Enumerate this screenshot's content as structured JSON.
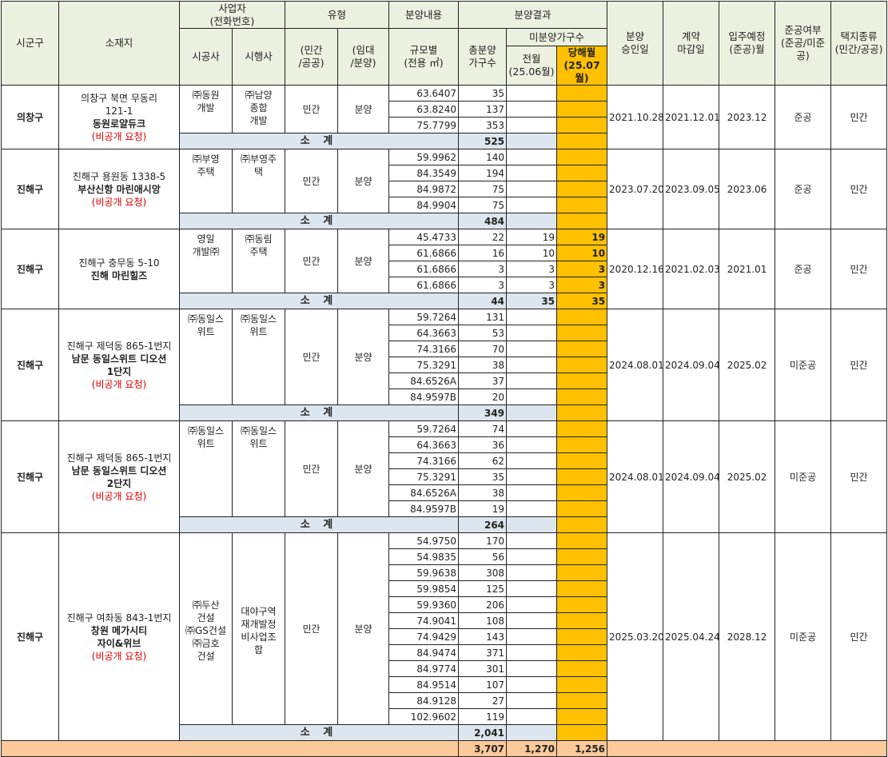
{
  "header": {
    "sigungu": "시군구",
    "location": "소재지",
    "business": "사업자\n(전화번호)",
    "type": "유형",
    "sale_content": "분양내용",
    "sale_result": "분양결과",
    "approval_date": "분양\n승인일",
    "contract_deadline": "계약\n마감일",
    "move_in": "입주예정\n(준공)월",
    "completion": "준공여부\n(준공/미준공)",
    "land_type": "택지종류\n(민간/공공)",
    "builder": "시공사",
    "developer": "시행사",
    "private_public": "(민간\n/공공)",
    "rent_sale": "(임대\n/분양)",
    "area": "규모별\n(전용 ㎡)",
    "total_units": "총분양\n가구수",
    "unsold": "미분양가구수",
    "prev_month": "전월\n(25.06월)",
    "curr_month": "당해월\n(25.07월)"
  },
  "subtotal_label": "소  계",
  "projects": [
    {
      "sigungu": "의창구",
      "addr": [
        "의창구 북면 무동리",
        "121-1"
      ],
      "name": "동원로얄듀크",
      "note": "(비공개 요청)",
      "builder": "㈜동원\n개발",
      "developer": "㈜남양\n종합\n개발",
      "pp": "민간",
      "rs": "분양",
      "rows": [
        {
          "area": "63.6407",
          "units": "35",
          "prev": "",
          "curr": ""
        },
        {
          "area": "63.8240",
          "units": "137",
          "prev": "",
          "curr": ""
        },
        {
          "area": "75.7799",
          "units": "353",
          "prev": "",
          "curr": ""
        }
      ],
      "subtotal": {
        "units": "525",
        "prev": "",
        "curr": ""
      },
      "approval": "2021.10.28",
      "deadline": "2021.12.01",
      "move_in": "2023.12",
      "completion": "준공",
      "land": "민간"
    },
    {
      "sigungu": "진해구",
      "addr": [
        "진해구 용원동 1338-5"
      ],
      "name": "부산신항 마린애시앙",
      "note": "(비공개 요청)",
      "builder": "㈜부영\n주택",
      "developer": "㈜부영주\n택",
      "pp": "민간",
      "rs": "분양",
      "rows": [
        {
          "area": "59.9962",
          "units": "140",
          "prev": "",
          "curr": ""
        },
        {
          "area": "84.3549",
          "units": "194",
          "prev": "",
          "curr": ""
        },
        {
          "area": "84.9872",
          "units": "75",
          "prev": "",
          "curr": ""
        },
        {
          "area": "84.9904",
          "units": "75",
          "prev": "",
          "curr": ""
        }
      ],
      "subtotal": {
        "units": "484",
        "prev": "",
        "curr": ""
      },
      "approval": "2023.07.20",
      "deadline": "2023.09.05",
      "move_in": "2023.06",
      "completion": "준공",
      "land": "민간"
    },
    {
      "sigungu": "진해구",
      "addr": [
        "진해구 충무동 5-10"
      ],
      "name": "진해 마린힐즈",
      "note": "",
      "builder": "영일\n개발㈜",
      "developer": "㈜동림\n주택",
      "pp": "민간",
      "rs": "분양",
      "rows": [
        {
          "area": "45.4733",
          "units": "22",
          "prev": "19",
          "curr": "19"
        },
        {
          "area": "61.6866",
          "units": "16",
          "prev": "10",
          "curr": "10"
        },
        {
          "area": "61.6866",
          "units": "3",
          "prev": "3",
          "curr": "3"
        },
        {
          "area": "61.6866",
          "units": "3",
          "prev": "3",
          "curr": "3"
        }
      ],
      "subtotal": {
        "units": "44",
        "prev": "35",
        "curr": "35"
      },
      "approval": "2020.12.16",
      "deadline": "2021.02.03",
      "move_in": "2021.01",
      "completion": "준공",
      "land": "민간"
    },
    {
      "sigungu": "진해구",
      "addr": [
        "진해구 제덕동 865-1번지"
      ],
      "name": "남문 동일스위트 디오션\n1단지",
      "note": "(비공개 요청)",
      "builder": "㈜동일스\n위트",
      "developer": "㈜동일스\n위트",
      "pp": "민간",
      "rs": "분양",
      "rows": [
        {
          "area": "59.7264",
          "units": "131",
          "prev": "",
          "curr": ""
        },
        {
          "area": "64.3663",
          "units": "53",
          "prev": "",
          "curr": ""
        },
        {
          "area": "74.3166",
          "units": "70",
          "prev": "",
          "curr": ""
        },
        {
          "area": "75.3291",
          "units": "38",
          "prev": "",
          "curr": ""
        },
        {
          "area": "84.6526A",
          "units": "37",
          "prev": "",
          "curr": ""
        },
        {
          "area": "84.9597B",
          "units": "20",
          "prev": "",
          "curr": ""
        }
      ],
      "subtotal": {
        "units": "349",
        "prev": "",
        "curr": ""
      },
      "approval": "2024.08.01.",
      "deadline": "2024.09.04.",
      "move_in": "2025.02",
      "completion": "미준공",
      "land": "민간"
    },
    {
      "sigungu": "진해구",
      "addr": [
        "진해구 제덕동 865-1번지"
      ],
      "name": "남문 동일스위트 디오션\n2단지",
      "note": "(비공개 요청)",
      "builder": "㈜동일스\n위트",
      "developer": "㈜동일스\n위트",
      "pp": "민간",
      "rs": "분양",
      "rows": [
        {
          "area": "59.7264",
          "units": "74",
          "prev": "",
          "curr": ""
        },
        {
          "area": "64.3663",
          "units": "36",
          "prev": "",
          "curr": ""
        },
        {
          "area": "74.3166",
          "units": "62",
          "prev": "",
          "curr": ""
        },
        {
          "area": "75.3291",
          "units": "35",
          "prev": "",
          "curr": ""
        },
        {
          "area": "84.6526A",
          "units": "38",
          "prev": "",
          "curr": ""
        },
        {
          "area": "84.9597B",
          "units": "19",
          "prev": "",
          "curr": ""
        }
      ],
      "subtotal": {
        "units": "264",
        "prev": "",
        "curr": ""
      },
      "approval": "2024.08.01.",
      "deadline": "2024.09.04.",
      "move_in": "2025.02",
      "completion": "미준공",
      "land": "민간"
    },
    {
      "sigungu": "진해구",
      "addr": [
        "진해구 여좌동 843-1번지"
      ],
      "name": "창원 메가시티\n자이&위브",
      "note": "(비공개 요청)",
      "builder": "㈜두산\n건설\n㈜GS건설\n㈜금호\n건설",
      "developer": "대야구역\n재개발정\n비사업조\n합",
      "pp": "민간",
      "rs": "분양",
      "rows": [
        {
          "area": "54.9750",
          "units": "170",
          "prev": "",
          "curr": ""
        },
        {
          "area": "54.9835",
          "units": "56",
          "prev": "",
          "curr": ""
        },
        {
          "area": "59.9638",
          "units": "308",
          "prev": "",
          "curr": ""
        },
        {
          "area": "59.9854",
          "units": "125",
          "prev": "",
          "curr": ""
        },
        {
          "area": "59.9360",
          "units": "206",
          "prev": "",
          "curr": ""
        },
        {
          "area": "74.9041",
          "units": "108",
          "prev": "",
          "curr": ""
        },
        {
          "area": "74.9429",
          "units": "143",
          "prev": "",
          "curr": ""
        },
        {
          "area": "84.9474",
          "units": "371",
          "prev": "",
          "curr": ""
        },
        {
          "area": "84.9774",
          "units": "301",
          "prev": "",
          "curr": ""
        },
        {
          "area": "84.9514",
          "units": "107",
          "prev": "",
          "curr": ""
        },
        {
          "area": "84.9128",
          "units": "27",
          "prev": "",
          "curr": ""
        },
        {
          "area": "102.9602",
          "units": "119",
          "prev": "",
          "curr": ""
        }
      ],
      "subtotal": {
        "units": "2,041",
        "prev": "",
        "curr": ""
      },
      "approval": "2025.03.20",
      "deadline": "2025.04.24",
      "move_in": "2028.12",
      "completion": "미준공",
      "land": "민간"
    }
  ],
  "grand_total": {
    "units": "3,707",
    "prev": "1,270",
    "curr": "1,256"
  }
}
